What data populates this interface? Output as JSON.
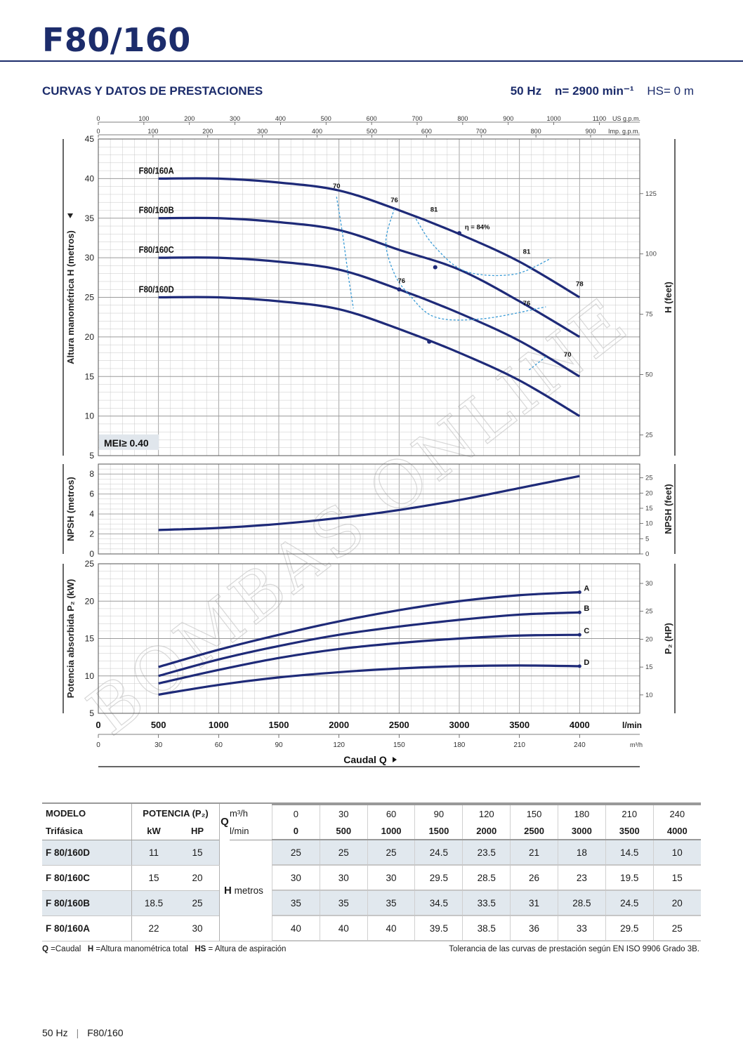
{
  "header": {
    "model_title": "F80/160",
    "section_title": "CURVAS Y DATOS DE PRESTACIONES",
    "frequency": "50 Hz",
    "speed": "n= 2900 min⁻¹",
    "suction": "HS= 0 m"
  },
  "chart_data": {
    "type": "line",
    "flow_lmin": [
      500,
      1000,
      1500,
      2000,
      2500,
      3000,
      3500,
      4000
    ],
    "x_axis": {
      "label": "Caudal  Q",
      "primary_unit": "l/min",
      "primary_ticks": [
        "0",
        "500",
        "1000",
        "1500",
        "2000",
        "2500",
        "3000",
        "3500",
        "4000"
      ],
      "m3h_unit": "m³/h",
      "m3h_ticks": [
        "0",
        "30",
        "60",
        "90",
        "120",
        "150",
        "180",
        "210",
        "240"
      ],
      "usgpm_unit": "US g.p.m.",
      "usgpm_ticks": [
        "0",
        "100",
        "200",
        "300",
        "400",
        "500",
        "600",
        "700",
        "800",
        "900",
        "1000",
        "1100"
      ],
      "impgpm_unit": "Imp. g.p.m.",
      "impgpm_ticks": [
        "0",
        "100",
        "200",
        "300",
        "400",
        "500",
        "600",
        "700",
        "800",
        "900"
      ],
      "xlim": [
        0,
        4500
      ]
    },
    "head": {
      "ylabel": "Altura manométrica H (metros)",
      "ylabel_right": "H (feet)",
      "ylim": [
        5,
        45
      ],
      "yticks": [
        "5",
        "10",
        "15",
        "20",
        "25",
        "30",
        "35",
        "40",
        "45"
      ],
      "yticks_right": [
        "25",
        "50",
        "75",
        "100",
        "125"
      ],
      "series": [
        {
          "name": "F80/160A",
          "values": [
            40,
            40,
            39.5,
            38.5,
            36,
            33,
            29.5,
            25
          ]
        },
        {
          "name": "F80/160B",
          "values": [
            35,
            35,
            34.5,
            33.5,
            31,
            28.5,
            24.5,
            20
          ]
        },
        {
          "name": "F80/160C",
          "values": [
            30,
            30,
            29.5,
            28.5,
            26,
            23,
            19.5,
            15
          ]
        },
        {
          "name": "F80/160D",
          "values": [
            25,
            25,
            24.5,
            23.5,
            21,
            18,
            14.5,
            10
          ]
        }
      ],
      "efficiency_labels": [
        "70",
        "76",
        "81",
        "η = 84%",
        "81",
        "78",
        "76",
        "76",
        "70"
      ],
      "mei": "MEI≥ 0.40"
    },
    "npsh": {
      "ylabel": "NPSH (metros)",
      "ylabel_right": "NPSH (feet)",
      "ylim": [
        0,
        9
      ],
      "yticks": [
        "0",
        "2",
        "4",
        "6",
        "8"
      ],
      "yticks_right": [
        "0",
        "5",
        "10",
        "15",
        "20",
        "25"
      ],
      "values": [
        2.4,
        2.6,
        3.0,
        3.6,
        4.4,
        5.4,
        6.6,
        7.8
      ]
    },
    "power": {
      "ylabel": "Potencia absorbida P₂ (kW)",
      "ylabel_right": "P₂ (HP)",
      "ylim": [
        5,
        25
      ],
      "yticks": [
        "5",
        "10",
        "15",
        "20",
        "25"
      ],
      "yticks_right": [
        "10",
        "15",
        "20",
        "25",
        "30"
      ],
      "series": [
        {
          "name": "A",
          "values": [
            11.2,
            13.5,
            15.5,
            17.3,
            18.8,
            20.0,
            20.8,
            21.2
          ]
        },
        {
          "name": "B",
          "values": [
            10.0,
            12.2,
            14.0,
            15.5,
            16.6,
            17.5,
            18.2,
            18.5
          ]
        },
        {
          "name": "C",
          "values": [
            9.0,
            10.8,
            12.4,
            13.6,
            14.4,
            15.0,
            15.4,
            15.5
          ]
        },
        {
          "name": "D",
          "values": [
            7.5,
            8.8,
            9.8,
            10.5,
            11.0,
            11.3,
            11.4,
            11.3
          ]
        }
      ]
    }
  },
  "table": {
    "headers": {
      "modelo": "MODELO",
      "trifasica": "Trifásica",
      "potencia": "POTENCIA (P₂)",
      "kw": "kW",
      "hp": "HP",
      "q": "Q",
      "m3h": "m³/h",
      "lmin": "l/min",
      "h_label": "H",
      "h_unit": "metros"
    },
    "m3h": [
      "0",
      "30",
      "60",
      "90",
      "120",
      "150",
      "180",
      "210",
      "240"
    ],
    "lmin": [
      "0",
      "500",
      "1000",
      "1500",
      "2000",
      "2500",
      "3000",
      "3500",
      "4000"
    ],
    "rows": [
      {
        "model": "F 80/160D",
        "kw": "11",
        "hp": "15",
        "h": [
          "25",
          "25",
          "25",
          "24.5",
          "23.5",
          "21",
          "18",
          "14.5",
          "10"
        ]
      },
      {
        "model": "F 80/160C",
        "kw": "15",
        "hp": "20",
        "h": [
          "30",
          "30",
          "30",
          "29.5",
          "28.5",
          "26",
          "23",
          "19.5",
          "15"
        ]
      },
      {
        "model": "F 80/160B",
        "kw": "18.5",
        "hp": "25",
        "h": [
          "35",
          "35",
          "35",
          "34.5",
          "33.5",
          "31",
          "28.5",
          "24.5",
          "20"
        ]
      },
      {
        "model": "F 80/160A",
        "kw": "22",
        "hp": "30",
        "h": [
          "40",
          "40",
          "40",
          "39.5",
          "38.5",
          "36",
          "33",
          "29.5",
          "25"
        ]
      }
    ]
  },
  "legend": {
    "q_key": "Q",
    "q_text": " =Caudal",
    "h_key": "H",
    "h_text": " =Altura manométrica total",
    "hs_key": "HS",
    "hs_text": " = Altura de aspiración",
    "tolerance": "Tolerancia de las curvas de prestación según EN ISO 9906 Grado 3B."
  },
  "watermark": "BOMBAS ONLINE",
  "footer": {
    "freq": "50 Hz",
    "model": "F80/160"
  },
  "colors": {
    "brand": "#1c2c6b",
    "curve": "#1e2a78",
    "efficiency": "#3a9bd6",
    "grid": "#c8c8c8",
    "shade": "#e1e8ee"
  }
}
